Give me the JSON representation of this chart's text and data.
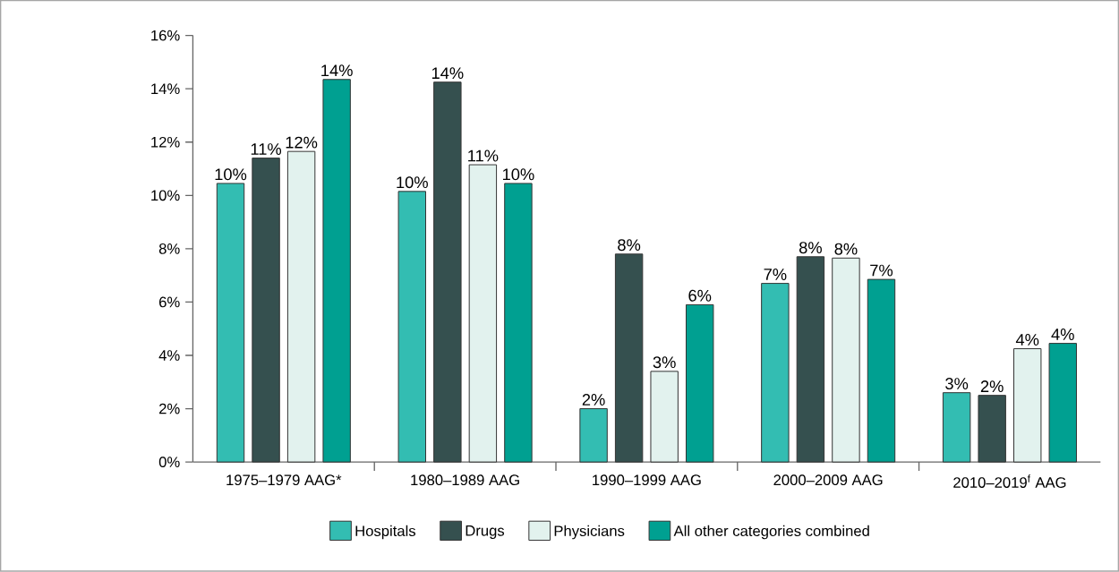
{
  "chart_data": {
    "type": "bar",
    "categories": [
      "1975–1979 AAG*",
      "1980–1989 AAG",
      "1990–1999 AAG",
      "2000–2009 AAG",
      "2010–2019$^{f}$ AAG"
    ],
    "series": [
      {
        "name": "Hospitals",
        "color": "#33bdb2",
        "values": [
          10.45,
          10.15,
          2.0,
          6.7,
          2.6
        ],
        "value_labels": [
          "10%",
          "10%",
          "2%",
          "7%",
          "3%"
        ]
      },
      {
        "name": "Drugs",
        "color": "#35504f",
        "values": [
          11.4,
          14.25,
          7.8,
          7.7,
          2.5
        ],
        "value_labels": [
          "11%",
          "14%",
          "8%",
          "8%",
          "2%"
        ]
      },
      {
        "name": "Physicians",
        "color": "#e2f2ee",
        "values": [
          11.65,
          11.15,
          3.4,
          7.65,
          4.25
        ],
        "value_labels": [
          "12%",
          "11%",
          "3%",
          "8%",
          "4%"
        ]
      },
      {
        "name": "All other categories combined",
        "color": "#00a091",
        "values": [
          14.35,
          10.45,
          5.9,
          6.85,
          4.45
        ],
        "value_labels": [
          "14%",
          "10%",
          "6%",
          "7%",
          "4%"
        ]
      }
    ],
    "ylim": [
      0,
      16
    ],
    "yticks": [
      {
        "value": 0,
        "label": "0%"
      },
      {
        "value": 2,
        "label": "2%"
      },
      {
        "value": 4,
        "label": "4%"
      },
      {
        "value": 6,
        "label": "6%"
      },
      {
        "value": 8,
        "label": "8%"
      },
      {
        "value": 10,
        "label": "10%"
      },
      {
        "value": 12,
        "label": "12%"
      },
      {
        "value": 14,
        "label": "14%"
      },
      {
        "value": 16,
        "label": "16%"
      }
    ],
    "grid": false,
    "legend": "bottom"
  }
}
